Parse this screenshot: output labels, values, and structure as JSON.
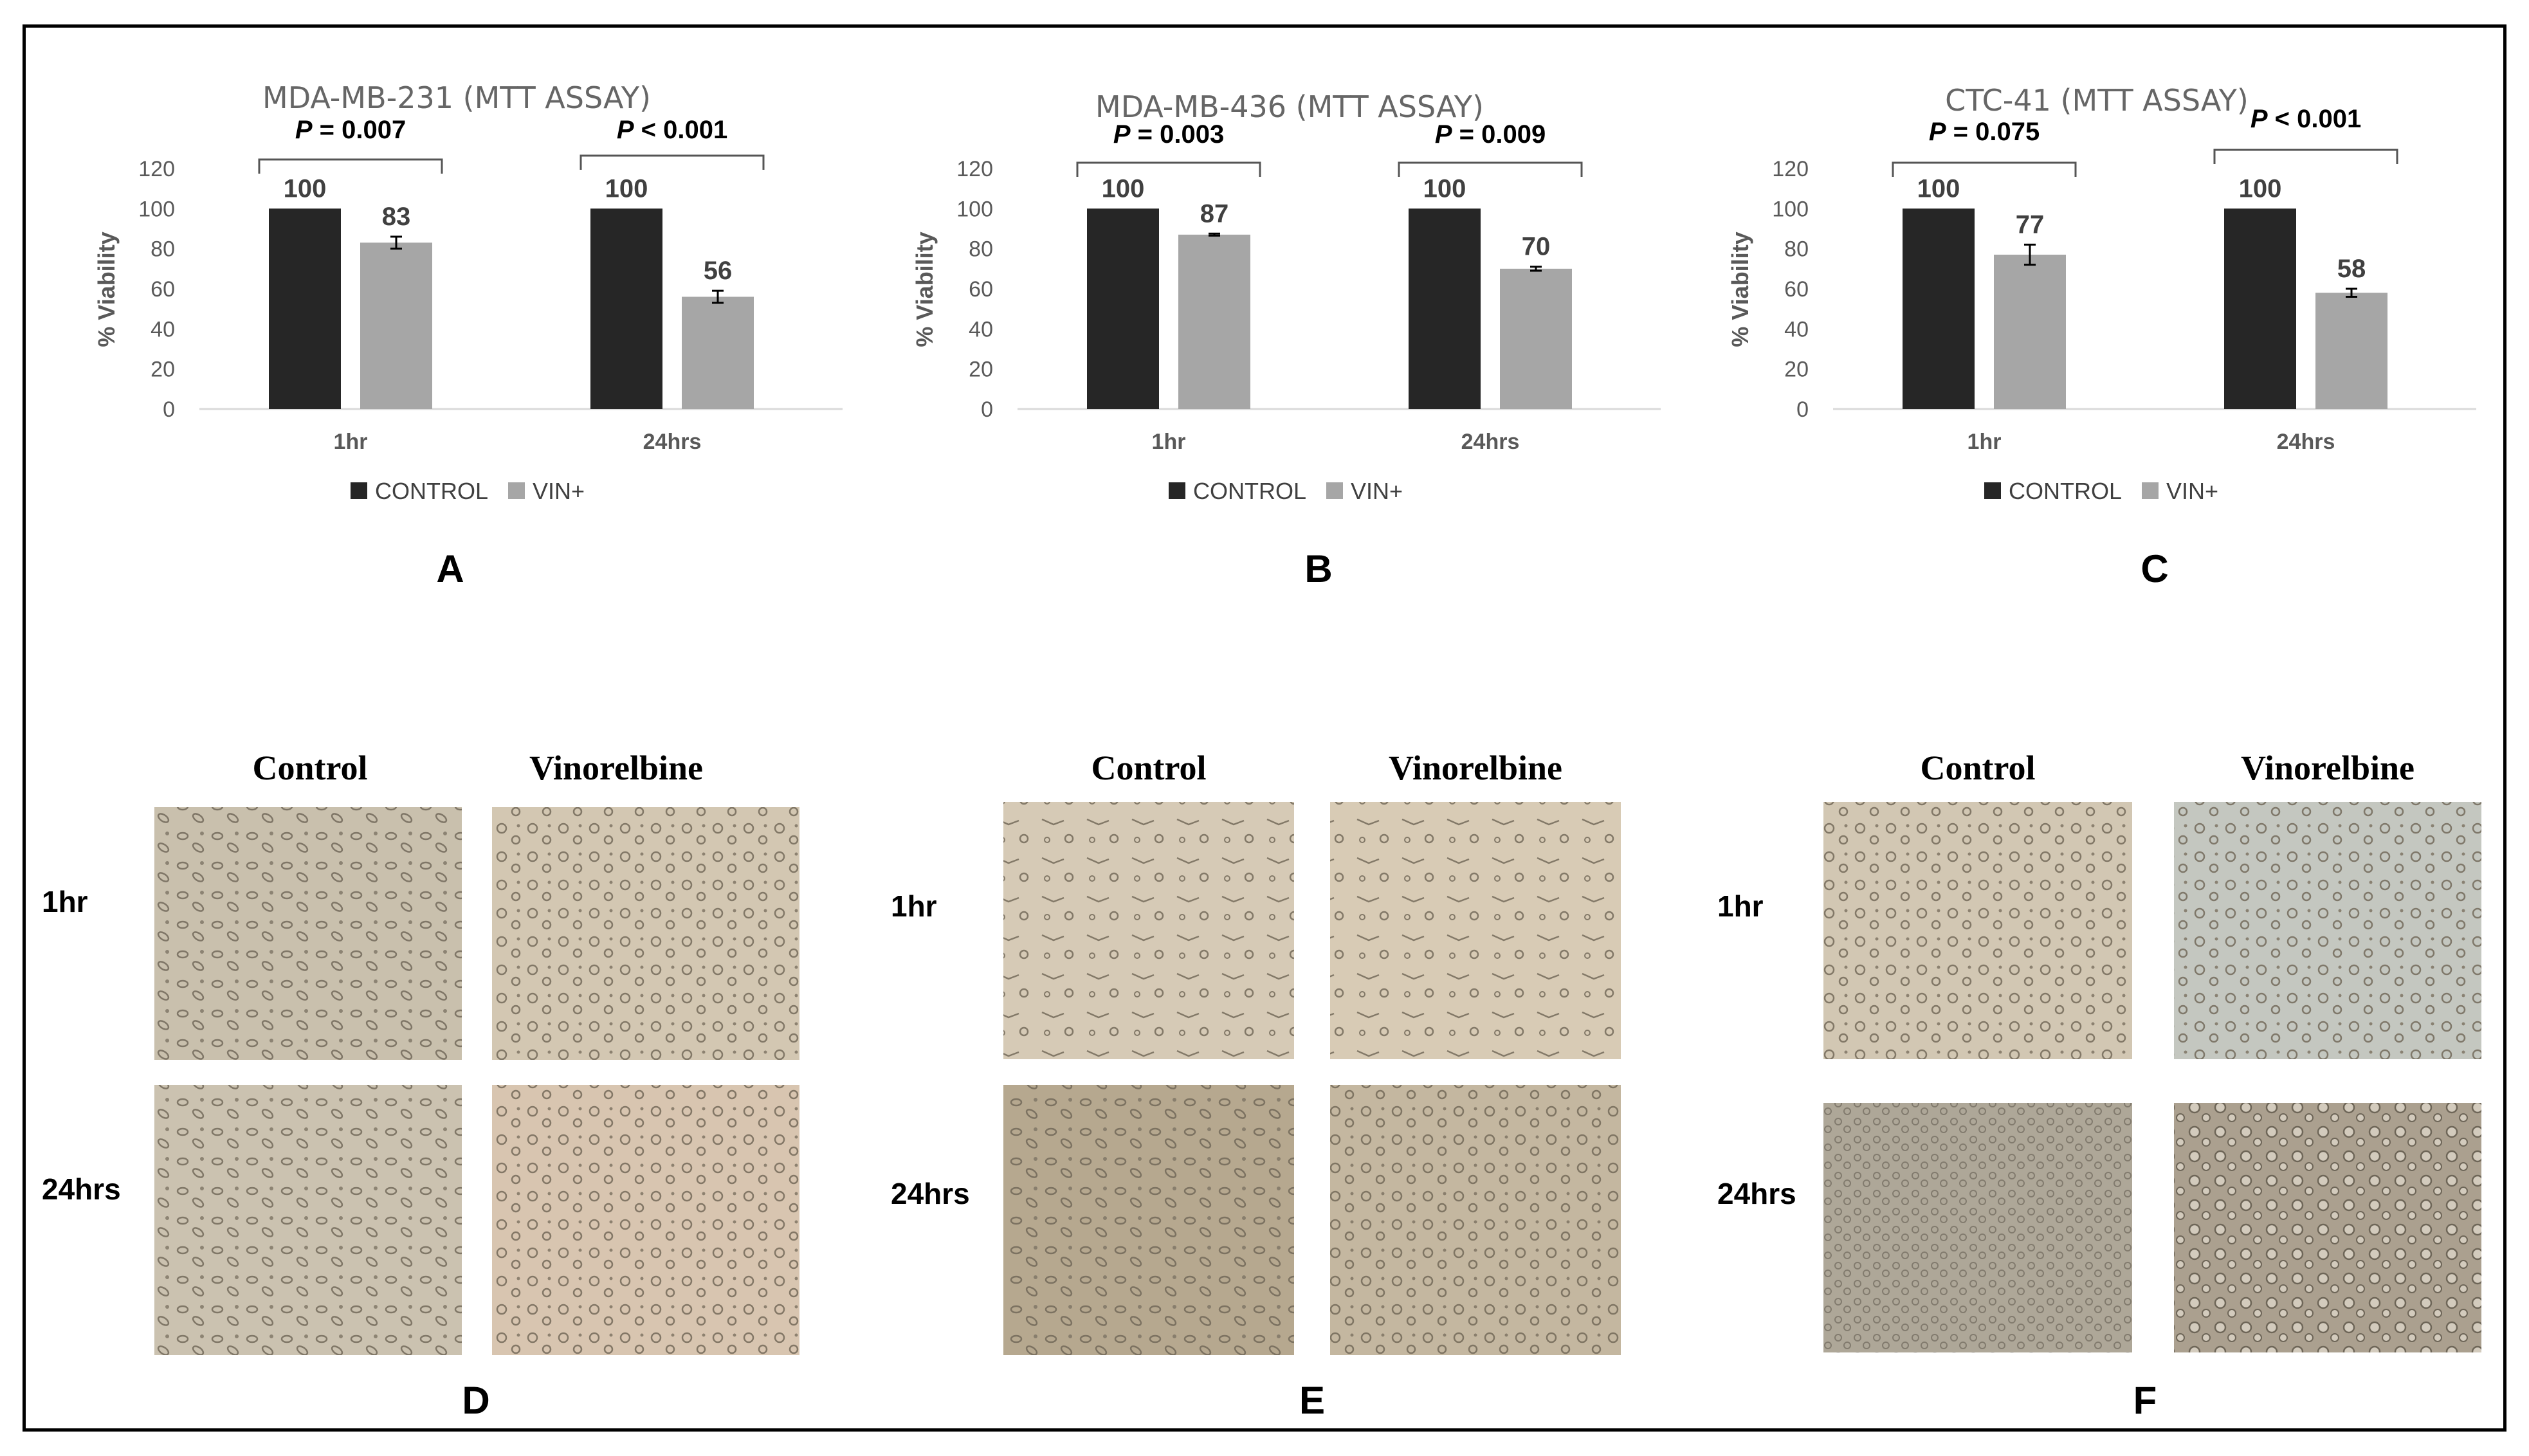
{
  "chart_data": [
    {
      "type": "bar",
      "panel": "A",
      "title": "MDA-MB-231 (MTT ASSAY)",
      "ylabel": "% Viability",
      "xlabel": "",
      "ylim": [
        0,
        120
      ],
      "yticks": [
        "0",
        "20",
        "40",
        "60",
        "80",
        "100",
        "120"
      ],
      "categories": [
        "1hr",
        "24hrs"
      ],
      "series": [
        {
          "name": "CONTROL",
          "values": [
            100,
            100
          ],
          "errors": [
            0,
            0
          ],
          "color": "#262626"
        },
        {
          "name": "VIN+",
          "values": [
            83,
            56
          ],
          "errors": [
            3,
            3
          ],
          "color": "#a6a6a6"
        }
      ],
      "data_labels": [
        [
          "100",
          "100"
        ],
        [
          "83",
          "56"
        ]
      ],
      "pvalues": [
        {
          "italic": "P",
          "rest": " = 0.007"
        },
        {
          "italic": "P",
          "rest": " < 0.001"
        }
      ],
      "legend": "bottom"
    },
    {
      "type": "bar",
      "panel": "B",
      "title": "MDA-MB-436 (MTT ASSAY)",
      "ylabel": "% Viability",
      "xlabel": "",
      "ylim": [
        0,
        120
      ],
      "yticks": [
        "0",
        "20",
        "40",
        "60",
        "80",
        "100",
        "120"
      ],
      "categories": [
        "1hr",
        "24hrs"
      ],
      "series": [
        {
          "name": "CONTROL",
          "values": [
            100,
            100
          ],
          "errors": [
            0,
            0
          ],
          "color": "#262626"
        },
        {
          "name": "VIN+",
          "values": [
            87,
            70
          ],
          "errors": [
            0.5,
            1
          ],
          "color": "#a6a6a6"
        }
      ],
      "data_labels": [
        [
          "100",
          "100"
        ],
        [
          "87",
          "70"
        ]
      ],
      "pvalues": [
        {
          "italic": "P",
          "rest": " = 0.003"
        },
        {
          "italic": "P",
          "rest": " = 0.009"
        }
      ],
      "legend": "bottom"
    },
    {
      "type": "bar",
      "panel": "C",
      "title": "CTC-41 (MTT ASSAY)",
      "ylabel": "% Viability",
      "xlabel": "",
      "ylim": [
        0,
        120
      ],
      "yticks": [
        "0",
        "20",
        "40",
        "60",
        "80",
        "100",
        "120"
      ],
      "categories": [
        "1hr",
        "24hrs"
      ],
      "series": [
        {
          "name": "CONTROL",
          "values": [
            100,
            100
          ],
          "errors": [
            0,
            0
          ],
          "color": "#262626"
        },
        {
          "name": "VIN+",
          "values": [
            77,
            58
          ],
          "errors": [
            5,
            2
          ],
          "color": "#a6a6a6"
        }
      ],
      "data_labels": [
        [
          "100",
          "100"
        ],
        [
          "77",
          "58"
        ]
      ],
      "pvalues": [
        {
          "italic": "P",
          "rest": " = 0.075"
        },
        {
          "italic": "P",
          "rest": " < 0.001"
        }
      ],
      "legend": "bottom"
    }
  ],
  "micrographs": [
    {
      "panel": "D",
      "columns": [
        "Control",
        "Vinorelbine"
      ],
      "rows": [
        "1hr",
        "24hrs"
      ],
      "tints": [
        [
          "#c9c0ad",
          "#d3c7b2"
        ],
        [
          "#cbc2b0",
          "#d8c5b0"
        ]
      ]
    },
    {
      "panel": "E",
      "columns": [
        "Control",
        "Vinorelbine"
      ],
      "rows": [
        "1hr",
        "24hrs"
      ],
      "tints": [
        [
          "#d6cab6",
          "#d8cbb5"
        ],
        [
          "#b6a88f",
          "#c4b7a0"
        ]
      ]
    },
    {
      "panel": "F",
      "columns": [
        "Control",
        "Vinorelbine"
      ],
      "rows": [
        "1hr",
        "24hrs"
      ],
      "tints": [
        [
          "#d2c7b3",
          "#c4c7c0"
        ],
        [
          "#aea798",
          "#aba08f"
        ]
      ]
    }
  ],
  "colors": {
    "control": "#262626",
    "vin": "#a6a6a6",
    "axis": "#d9d9d9",
    "frame": "#000000"
  }
}
